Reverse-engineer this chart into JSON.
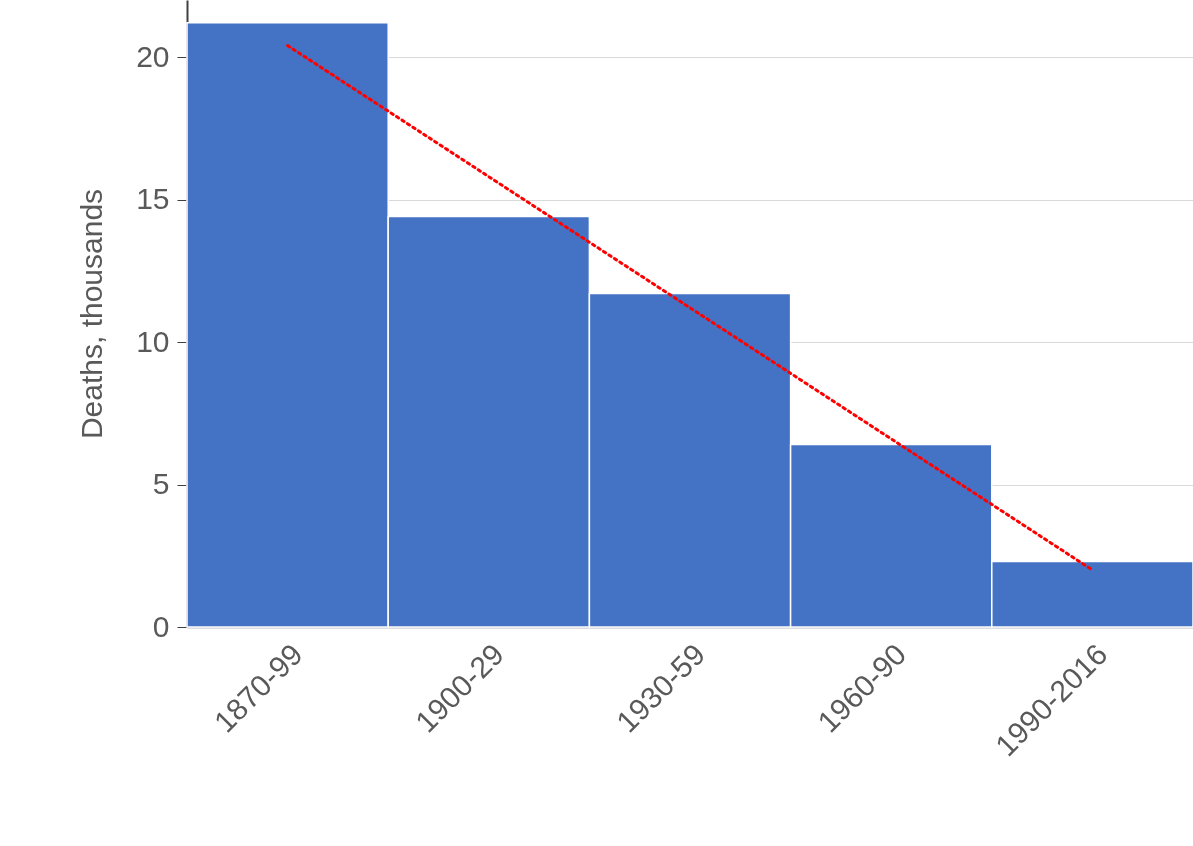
{
  "chart_data": {
    "type": "bar",
    "ylabel": "Deaths, thousands",
    "categories": [
      "1870-99",
      "1900-29",
      "1930-59",
      "1960-90",
      "1990-2016"
    ],
    "series": [
      {
        "color": "#4472c4",
        "values": [
          21.2,
          14.4,
          11.7,
          6.4,
          2.3
        ]
      },
      {
        "type": "line",
        "color": "#ff0000",
        "line_style": "dotted",
        "values": [
          20.4,
          15.8,
          11.2,
          6.6,
          2.0
        ]
      }
    ],
    "ylim": [
      0,
      22
    ],
    "yticks": [
      0,
      5,
      10,
      15,
      20
    ],
    "grid": "y"
  }
}
